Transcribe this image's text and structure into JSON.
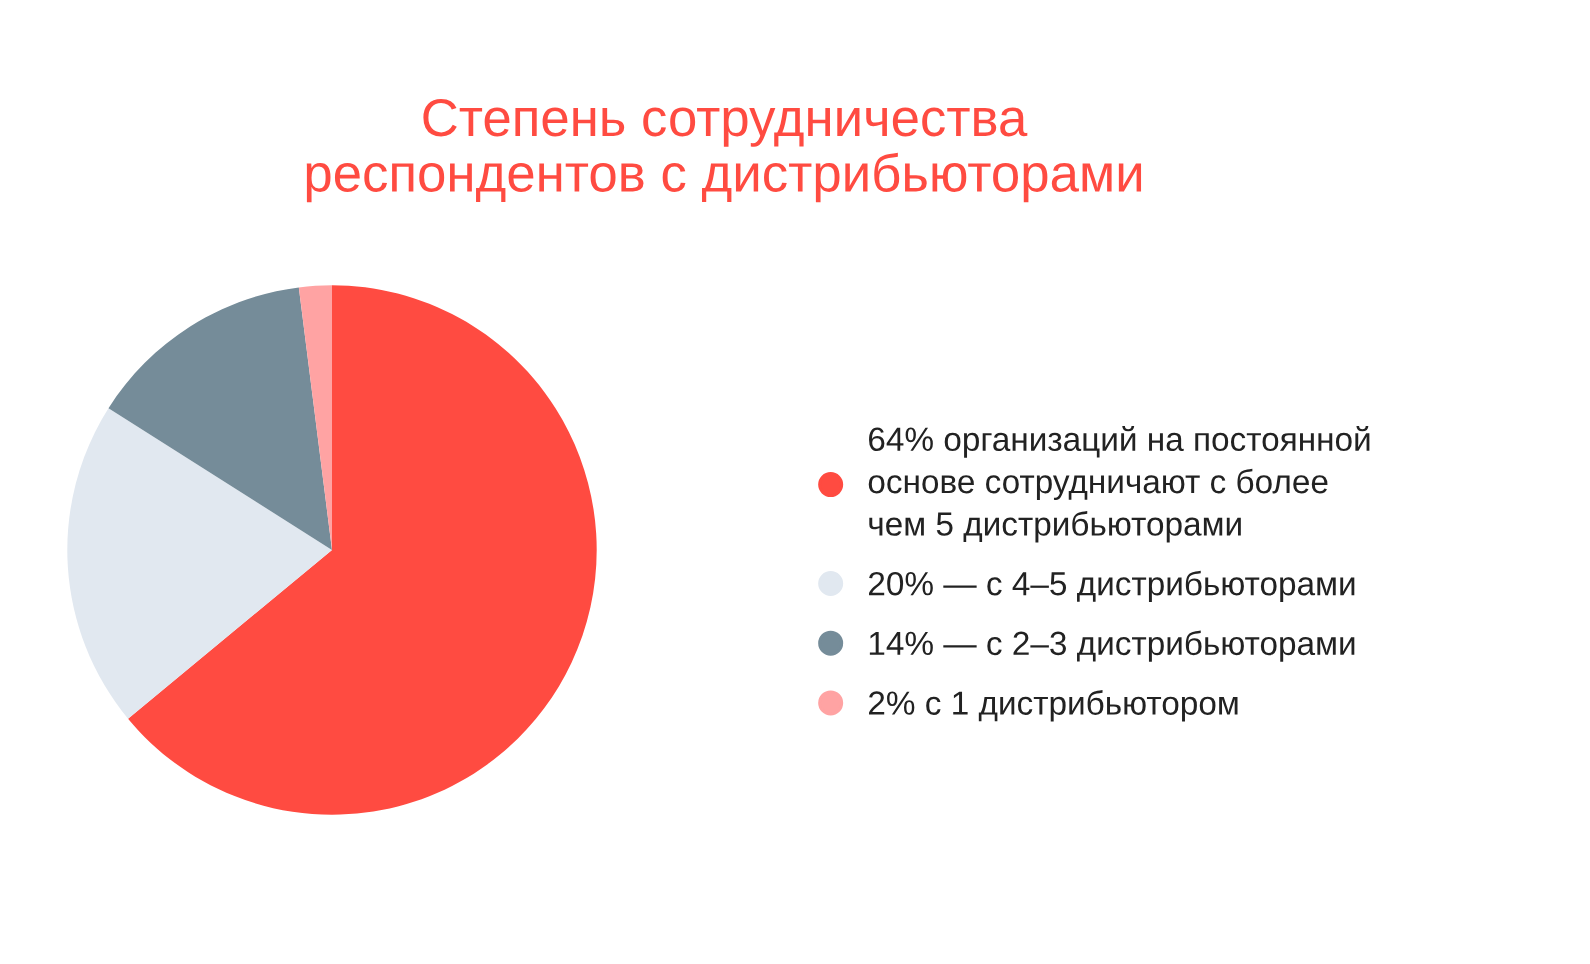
{
  "chart_data": {
    "type": "pie",
    "title": "Степень сотрудничества\nреспондентов с дистрибьюторами",
    "categories": [
      "64% организаций на постоянной\nоснове сотрудничают с более\nчем 5 дистрибьюторами",
      "20% — с 4–5 дистрибьюторами",
      "14% — с 2–3 дистрибьюторами",
      "2% с 1 дистрибьютором"
    ],
    "values": [
      64,
      20,
      14,
      2
    ],
    "colors": [
      "#ff4b41",
      "#e1e8f0",
      "#758c99",
      "#ffa3a3"
    ],
    "legend": "right"
  }
}
